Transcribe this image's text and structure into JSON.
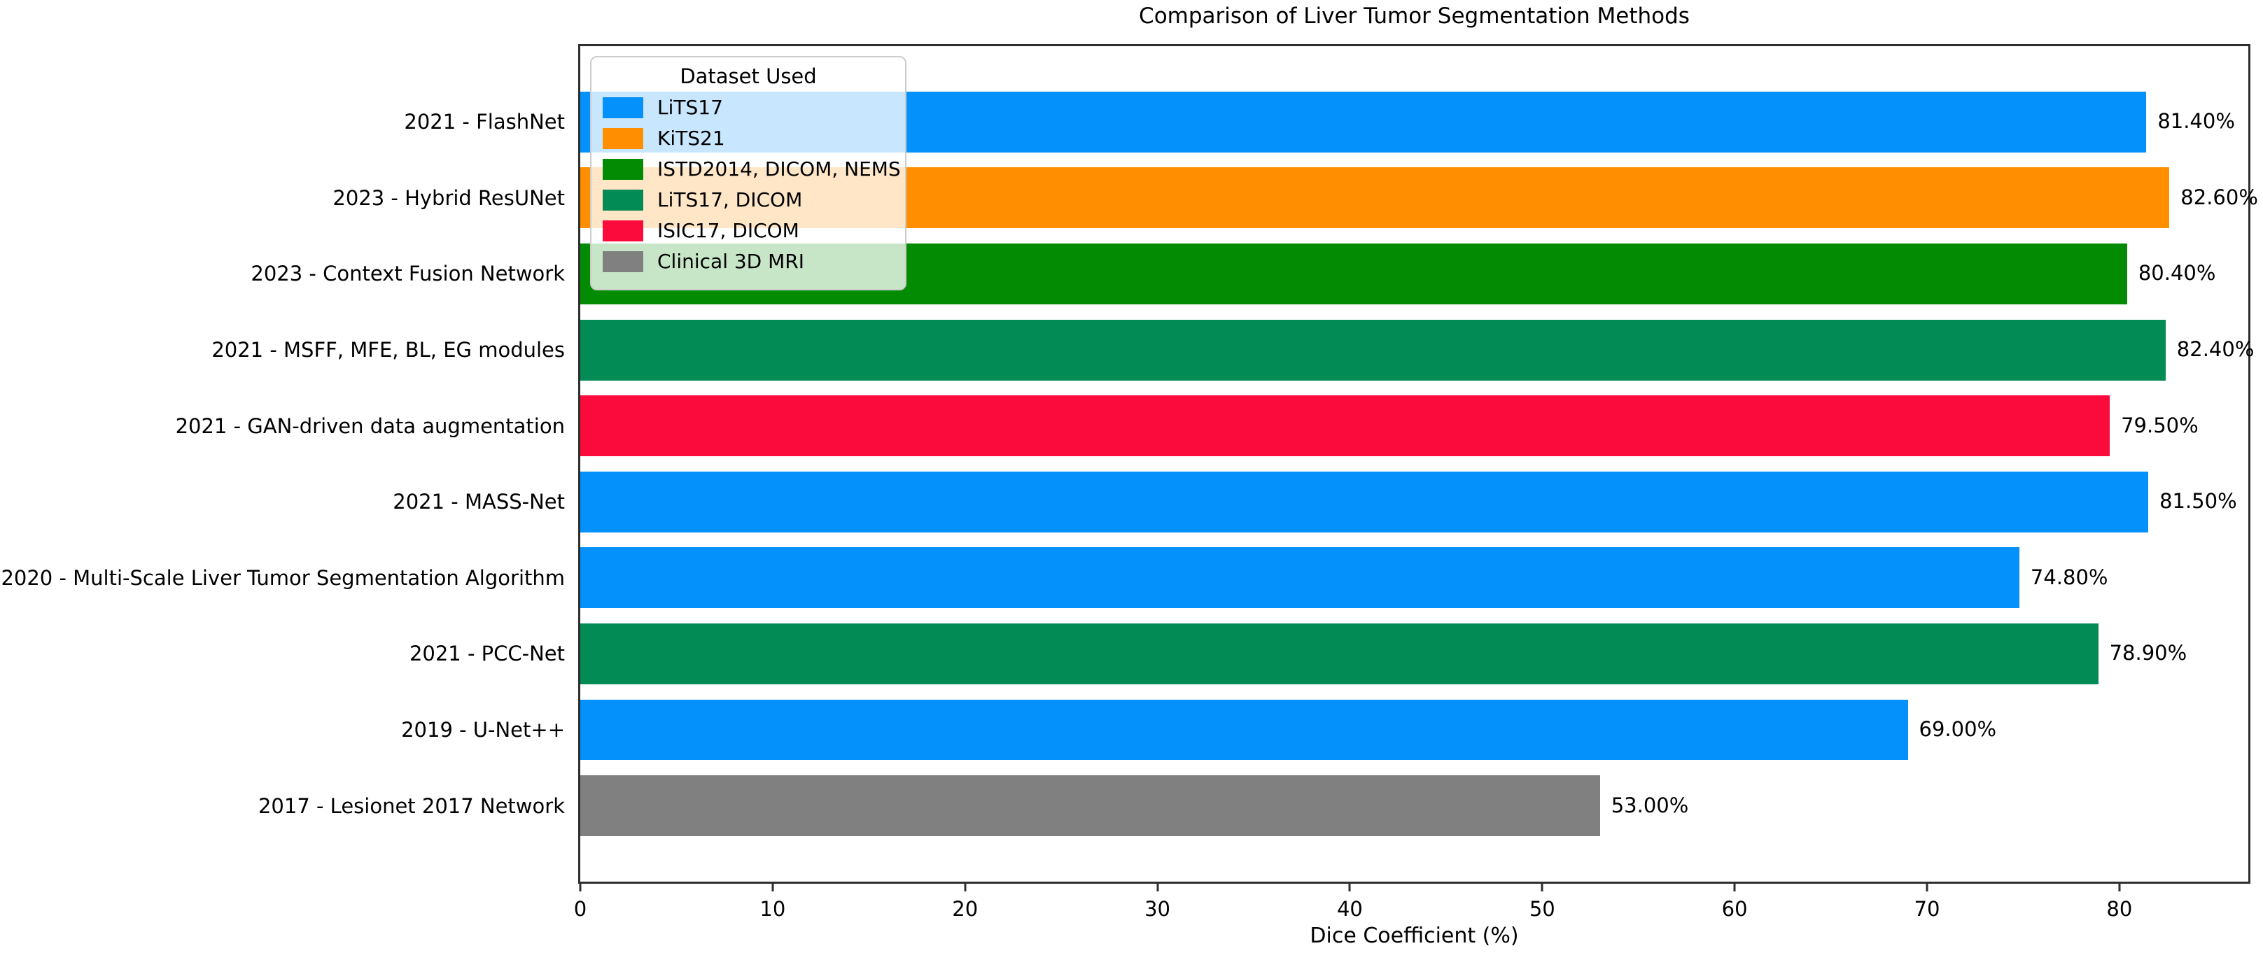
{
  "figure": {
    "title": "Comparison of Liver Tumor Segmentation Methods",
    "xlabel": "Dice Coefficient (%)"
  },
  "legend": {
    "title": "Dataset Used",
    "items": [
      {
        "label": "LiTS17",
        "color": "#0591FC"
      },
      {
        "label": "KiTS21",
        "color": "#FF8E01"
      },
      {
        "label": "ISTD2014, DICOM, NEMS",
        "color": "#038C03"
      },
      {
        "label": "LiTS17, DICOM",
        "color": "#028B55"
      },
      {
        "label": "ISIC17, DICOM",
        "color": "#FB0A3C"
      },
      {
        "label": "Clinical 3D MRI",
        "color": "#808080"
      }
    ]
  },
  "chart_data": {
    "type": "bar",
    "orientation": "horizontal",
    "title": "Comparison of Liver Tumor Segmentation Methods",
    "xlabel": "Dice Coefficient (%)",
    "ylabel": "",
    "xlim": [
      0,
      86.7
    ],
    "xticks": [
      0,
      10,
      20,
      30,
      40,
      50,
      60,
      70,
      80
    ],
    "grid": false,
    "legend_title": "Dataset Used",
    "legend_position": "upper left",
    "categories": [
      "2021 - FlashNet",
      "2023 - Hybrid ResUNet",
      "2023 - Context Fusion Network",
      "2021 - MSFF, MFE, BL, EG modules",
      "2021 - GAN-driven data augmentation",
      "2021 - MASS-Net",
      "2020 - Multi-Scale Liver Tumor Segmentation Algorithm",
      "2021 - PCC-Net",
      "2019 - U-Net++",
      "2017 - Lesionet 2017 Network"
    ],
    "values": [
      81.4,
      82.6,
      80.4,
      82.4,
      79.5,
      81.5,
      74.8,
      78.9,
      69.0,
      53.0
    ],
    "value_labels": [
      "81.40%",
      "82.60%",
      "80.40%",
      "82.40%",
      "79.50%",
      "81.50%",
      "74.80%",
      "78.90%",
      "69.00%",
      "53.00%"
    ],
    "datasets": [
      "LiTS17",
      "KiTS21",
      "ISTD2014, DICOM, NEMS",
      "LiTS17, DICOM",
      "ISIC17, DICOM",
      "LiTS17",
      "LiTS17",
      "LiTS17, DICOM",
      "LiTS17",
      "Clinical 3D MRI"
    ],
    "bar_colors": [
      "#0591FC",
      "#FF8E01",
      "#038C03",
      "#028B55",
      "#FB0A3C",
      "#0591FC",
      "#0591FC",
      "#028B55",
      "#0591FC",
      "#808080"
    ]
  }
}
